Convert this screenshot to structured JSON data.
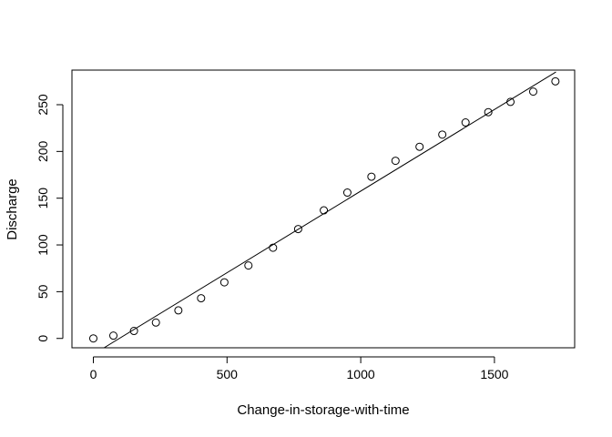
{
  "chart_data": {
    "type": "scatter",
    "title": "",
    "xlabel": "Change-in-storage-with-time",
    "ylabel": "Discharge",
    "xlim": [
      -80,
      1800
    ],
    "ylim": [
      -10,
      287
    ],
    "x_ticks": [
      0,
      500,
      1000,
      1500
    ],
    "x_tick_labels": [
      "0",
      "500",
      "1000",
      "1500"
    ],
    "y_ticks": [
      0,
      50,
      100,
      150,
      200,
      250
    ],
    "y_tick_labels": [
      "0",
      "50",
      "100",
      "150",
      "200",
      "250"
    ],
    "grid": false,
    "legend": "none",
    "series": [
      {
        "marker": "open-circle",
        "x": [
          0,
          75,
          152,
          234,
          318,
          403,
          490,
          580,
          672,
          766,
          862,
          950,
          1040,
          1130,
          1220,
          1305,
          1392,
          1477,
          1560,
          1645,
          1728
        ],
        "y": [
          0,
          3,
          8,
          17,
          30,
          43,
          60,
          78,
          97,
          117,
          137,
          156,
          173,
          190,
          205,
          218,
          231,
          242,
          253,
          264,
          275
        ]
      }
    ],
    "fit_line": {
      "type": "linear",
      "x": [
        40,
        1730
      ],
      "y": [
        -10,
        285
      ]
    }
  },
  "colors": {
    "ink": "#000000",
    "background": "#ffffff"
  }
}
